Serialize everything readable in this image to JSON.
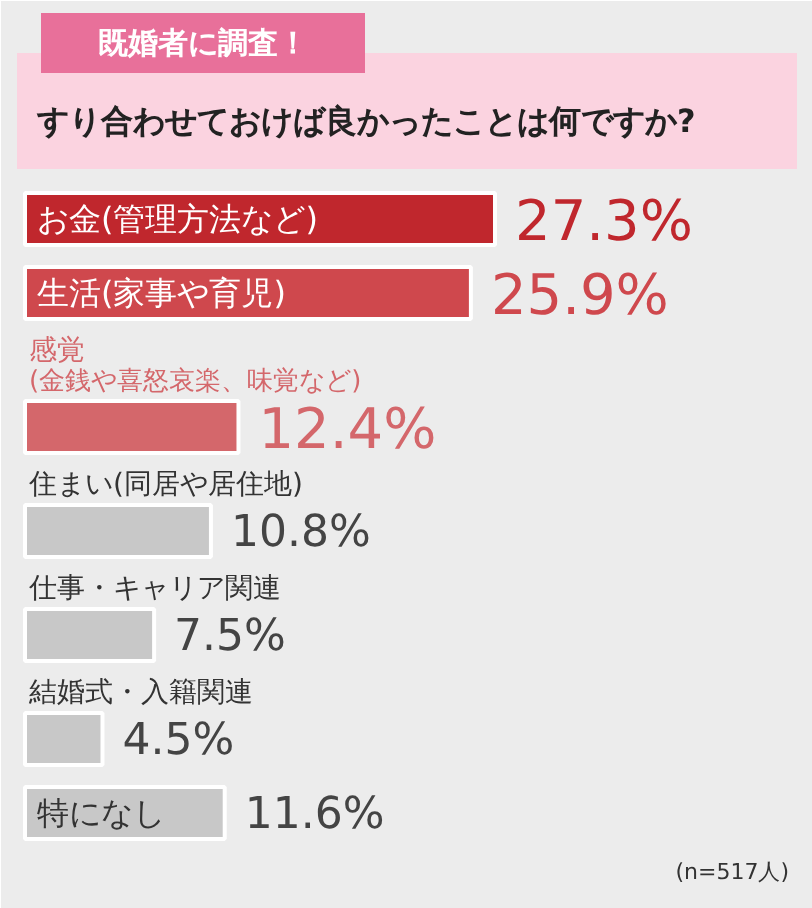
{
  "chart_data": {
    "type": "bar",
    "orientation": "horizontal",
    "subtitle": "既婚者に調査！",
    "title": "すり合わせておけば良かったことは何ですか?",
    "categories": [
      "お金(管理方法など)",
      "生活(家事や育児)",
      "感覚\n(金銭や喜怒哀楽、味覚など)",
      "住まい(同居や居住地)",
      "仕事・キャリア関連",
      "結婚式・入籍関連",
      "特になし"
    ],
    "values": [
      27.3,
      25.9,
      12.4,
      10.8,
      7.5,
      4.5,
      11.6
    ],
    "colors": [
      "#c0272d",
      "#cf484d",
      "#d4676b",
      "#c8c8c8",
      "#c8c8c8",
      "#c8c8c8",
      "#c8c8c8"
    ],
    "value_labels": [
      "27.3%",
      "25.9%",
      "12.4%",
      "10.8%",
      "7.5%",
      "4.5%",
      "11.6%"
    ],
    "annotations": [
      "(n=517人)"
    ]
  }
}
